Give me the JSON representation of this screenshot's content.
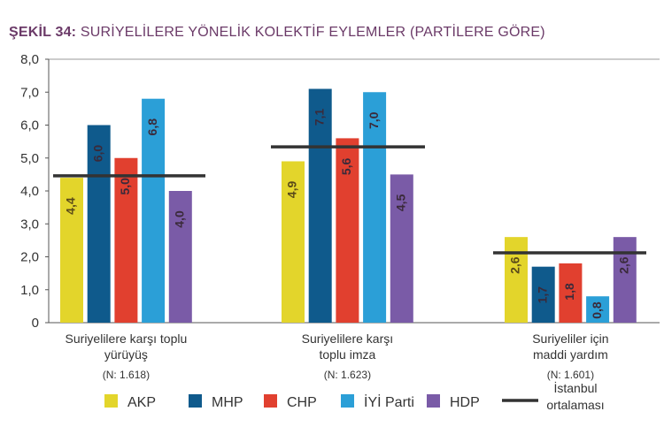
{
  "title": {
    "prefix": "ŞEKİL 34:",
    "text": "SURİYELİLERE YÖNELİK KOLEKTİF EYLEMLER (PARTİLERE GÖRE)"
  },
  "chart_data": {
    "type": "bar",
    "title": "ŞEKİL 34: SURİYELİLERE YÖNELİK KOLEKTİF EYLEMLER (PARTİLERE GÖRE)",
    "ylim": [
      0,
      8
    ],
    "yticks": [
      "0",
      "1,0",
      "2,0",
      "3,0",
      "4,0",
      "5,0",
      "6,0",
      "7,0",
      "8,0"
    ],
    "grid": false,
    "legend_position": "bottom",
    "categories": [
      {
        "lines": [
          "Suriyelilere karşı toplu",
          "yürüyüş"
        ],
        "n": "(N: 1.618)"
      },
      {
        "lines": [
          "Suriyelilere karşı",
          "toplu imza"
        ],
        "n": "(N: 1.623)"
      },
      {
        "lines": [
          "Suriyeliler için",
          "maddi yardım"
        ],
        "n": "(N: 1.601)"
      }
    ],
    "series": [
      {
        "name": "AKP",
        "color": "#e3d52b",
        "values": [
          4.4,
          4.9,
          2.6
        ],
        "labels": [
          "4,4",
          "4,9",
          "2,6"
        ]
      },
      {
        "name": "MHP",
        "color": "#0f5a8c",
        "values": [
          6.0,
          7.1,
          1.7
        ],
        "labels": [
          "6,0",
          "7,1",
          "1,7"
        ]
      },
      {
        "name": "CHP",
        "color": "#e1402f",
        "values": [
          5.0,
          5.6,
          1.8
        ],
        "labels": [
          "5,0",
          "5,6",
          "1,8"
        ]
      },
      {
        "name": "İYİ Parti",
        "color": "#2b9fd7",
        "values": [
          6.8,
          7.0,
          0.8
        ],
        "labels": [
          "6,8",
          "7,0",
          "0,8"
        ]
      },
      {
        "name": "HDP",
        "color": "#7a5ba7",
        "values": [
          4.0,
          4.5,
          2.6
        ],
        "labels": [
          "4,0",
          "4,5",
          "2,6"
        ]
      }
    ],
    "average": {
      "name": "İstanbul ortalaması",
      "name_lines": [
        "İstanbul",
        "ortalaması"
      ],
      "color": "#333333",
      "values": [
        4.46,
        5.34,
        2.12
      ]
    }
  }
}
